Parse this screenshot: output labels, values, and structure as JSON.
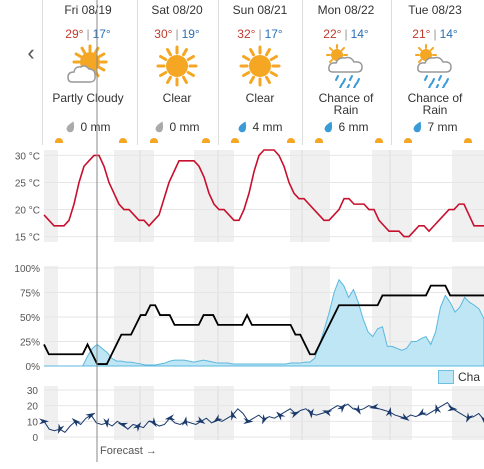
{
  "nav": {
    "prev_icon": "chevron-left-icon",
    "prev_glyph": "‹"
  },
  "days": [
    {
      "date": "Fri 08/19",
      "hi": "29°",
      "lo": "17°",
      "condition": "Partly Cloudy",
      "icon": "partly-cloudy-icon",
      "precip": "0 mm",
      "drop_icon": "rain-drop-gray-icon"
    },
    {
      "date": "Sat 08/20",
      "hi": "30°",
      "lo": "19°",
      "condition": "Clear",
      "icon": "sun-icon",
      "precip": "0 mm",
      "drop_icon": "rain-drop-gray-icon"
    },
    {
      "date": "Sun 08/21",
      "hi": "32°",
      "lo": "17°",
      "condition": "Clear",
      "icon": "sun-icon",
      "precip": "4 mm",
      "drop_icon": "rain-drop-blue-icon"
    },
    {
      "date": "Mon 08/22",
      "hi": "22°",
      "lo": "14°",
      "condition": "Chance of Rain",
      "icon": "sun-cloud-rain-icon",
      "precip": "6 mm",
      "drop_icon": "rain-drop-blue-icon"
    },
    {
      "date": "Tue 08/23",
      "hi": "21°",
      "lo": "14°",
      "condition": "Chance of Rain",
      "icon": "sun-cloud-rain-icon",
      "precip": "7 mm",
      "drop_icon": "rain-drop-blue-icon"
    }
  ],
  "separator": "|",
  "colors": {
    "temp_line": "#c8102e",
    "hi": "#c0392b",
    "lo": "#2a6fb5",
    "rain_fill": "#bfe6f5",
    "rain_stroke": "#5bb8de",
    "cloud_line": "#000000",
    "wind": "#1a3a6b",
    "shade": "#f0f0f0",
    "sun": "#f5a623"
  },
  "legend": {
    "label": "Cha"
  },
  "forecast_label": "Forecast →",
  "chart_data": [
    {
      "type": "line",
      "name": "temperature",
      "ylabel_ticks": [
        "30 °C",
        "25 °C",
        "20 °C",
        "15 °C"
      ],
      "ylim": [
        14,
        31
      ],
      "values": [
        19,
        18,
        17,
        17,
        17,
        18,
        21,
        25,
        28,
        29,
        30,
        30,
        28,
        25,
        23,
        21,
        20,
        20,
        19,
        18,
        18,
        17,
        18,
        19,
        22,
        25,
        27,
        29,
        29,
        29,
        29,
        28,
        26,
        23,
        21,
        20,
        20,
        19,
        18,
        18,
        20,
        23,
        27,
        30,
        31,
        31,
        31,
        30,
        28,
        25,
        23,
        22,
        22,
        21,
        20,
        19,
        18,
        18,
        19,
        20,
        22,
        22,
        21,
        21,
        21,
        20,
        20,
        18,
        17,
        16,
        16,
        16,
        15,
        15,
        16,
        17,
        17,
        16,
        17,
        18,
        19,
        20,
        20,
        21,
        21,
        19,
        17,
        17,
        17
      ]
    },
    {
      "type": "area",
      "name": "cloud-and-rain",
      "ylabel_ticks": [
        "100%",
        "75%",
        "50%",
        "25%",
        "0%"
      ],
      "ylim": [
        0,
        100
      ],
      "cloud_cover": [
        22,
        12,
        12,
        12,
        12,
        12,
        12,
        12,
        12,
        22,
        12,
        2,
        2,
        2,
        12,
        22,
        32,
        32,
        32,
        42,
        52,
        52,
        62,
        62,
        52,
        52,
        52,
        42,
        42,
        42,
        42,
        42,
        42,
        52,
        52,
        52,
        42,
        42,
        42,
        42,
        42,
        42,
        52,
        42,
        42,
        42,
        42,
        42,
        42,
        42,
        42,
        42,
        32,
        32,
        22,
        12,
        12,
        22,
        32,
        42,
        52,
        62,
        62,
        62,
        62,
        62,
        62,
        62,
        62,
        62,
        72,
        72,
        72,
        72,
        72,
        72,
        72,
        72,
        72,
        72,
        82,
        82,
        82,
        82,
        72,
        72,
        72,
        72,
        72,
        72,
        72,
        72
      ],
      "chance_of_rain": [
        0,
        0,
        0,
        0,
        0,
        0,
        0,
        0,
        0,
        10,
        18,
        22,
        18,
        14,
        8,
        5,
        5,
        4,
        4,
        3,
        2,
        1,
        1,
        1,
        2,
        3,
        5,
        6,
        6,
        6,
        5,
        4,
        5,
        6,
        5,
        4,
        3,
        3,
        3,
        2,
        2,
        2,
        2,
        2,
        2,
        2,
        2,
        2,
        2,
        2,
        2,
        3,
        3,
        3,
        4,
        4,
        8,
        22,
        38,
        55,
        75,
        88,
        82,
        70,
        78,
        65,
        48,
        35,
        30,
        38,
        40,
        20,
        20,
        18,
        16,
        18,
        25,
        25,
        28,
        30,
        22,
        35,
        60,
        72,
        65,
        55,
        60,
        70,
        65,
        62,
        58,
        48
      ]
    },
    {
      "type": "line",
      "name": "wind",
      "ylabel_ticks": [
        "30",
        "20",
        "10",
        "0"
      ],
      "ylim": [
        0,
        30
      ],
      "values": [
        10,
        5,
        4,
        5,
        3,
        7,
        10,
        8,
        12,
        14,
        9,
        8,
        9,
        7,
        10,
        8,
        5,
        8,
        7,
        6,
        10,
        9,
        7,
        8,
        12,
        9,
        8,
        10,
        9,
        8,
        10,
        12,
        9,
        11,
        10,
        12,
        14,
        18,
        15,
        10,
        12,
        14,
        11,
        13,
        12,
        14,
        16,
        18,
        15,
        17,
        18,
        15,
        14,
        15,
        16,
        18,
        20,
        19,
        21,
        18,
        17,
        18,
        20,
        19,
        18,
        17,
        16,
        14,
        13,
        12,
        14,
        13,
        15,
        14,
        16,
        18,
        20,
        22,
        18,
        16,
        14,
        12,
        13,
        15,
        11
      ]
    }
  ]
}
